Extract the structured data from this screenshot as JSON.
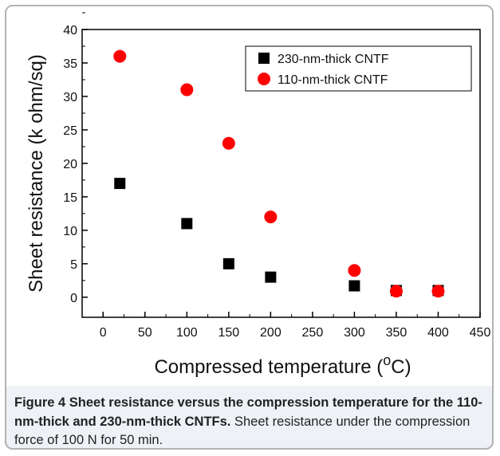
{
  "chart_data": {
    "type": "scatter",
    "xlabel": "Compressed temperature (",
    "xlabel_sup": "o",
    "xlabel_unit": "C)",
    "ylabel": "Sheet resistance (k ohm/sq)",
    "xlim": [
      -25,
      450
    ],
    "ylim": [
      -3,
      40
    ],
    "xticks": [
      0,
      50,
      100,
      150,
      200,
      250,
      300,
      350,
      400,
      450
    ],
    "yticks": [
      0,
      5,
      10,
      15,
      20,
      25,
      30,
      35,
      40
    ],
    "legend_position": "top-right",
    "series": [
      {
        "name": "230-nm-thick CNTF",
        "marker": "square",
        "color": "#000000",
        "x": [
          20,
          100,
          150,
          200,
          300,
          350,
          400
        ],
        "y": [
          17,
          11,
          5,
          3,
          1.7,
          1,
          1
        ]
      },
      {
        "name": "110-nm-thick CNTF",
        "marker": "circle",
        "color": "#ff0000",
        "x": [
          20,
          100,
          150,
          200,
          300,
          350,
          400
        ],
        "y": [
          36,
          31,
          23,
          12,
          4,
          0.9,
          0.9
        ]
      }
    ]
  },
  "caption": {
    "label": "Figure 4",
    "bold_text": "Sheet resistance versus the compression temperature for the 110-nm-thick and 230-nm-thick CNTFs.",
    "text": "Sheet resistance under the compression force of 100 N for 50 min."
  }
}
